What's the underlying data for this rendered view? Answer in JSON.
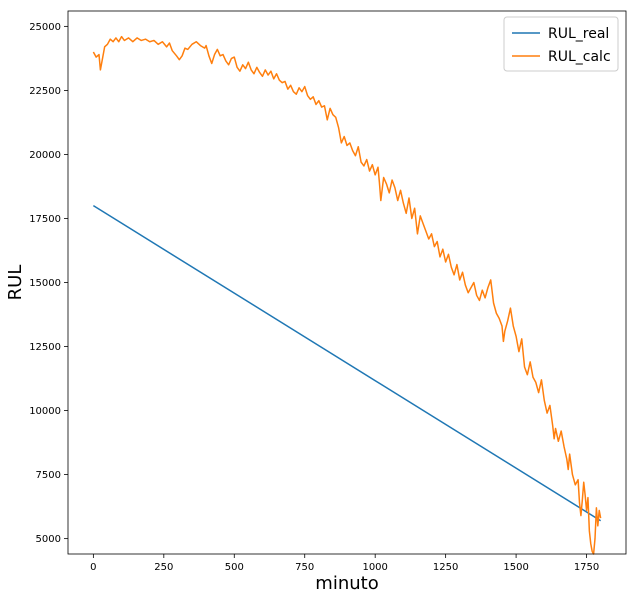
{
  "chart_data": {
    "type": "line",
    "title": "",
    "xlabel": "minuto",
    "ylabel": "RUL",
    "xlim": [
      -90,
      1890
    ],
    "ylim": [
      4400,
      25600
    ],
    "xticks": [
      0,
      250,
      500,
      750,
      1000,
      1250,
      1500,
      1750
    ],
    "yticks": [
      5000,
      7500,
      10000,
      12500,
      15000,
      17500,
      20000,
      22500,
      25000
    ],
    "legend_position": "top-right",
    "grid": false,
    "series": [
      {
        "name": "RUL_real",
        "color": "#1f77b4",
        "points": [
          [
            0,
            18000
          ],
          [
            1800,
            5700
          ]
        ]
      },
      {
        "name": "RUL_calc",
        "color": "#ff7f0e",
        "points": [
          [
            0,
            24000
          ],
          [
            10,
            23800
          ],
          [
            20,
            23900
          ],
          [
            25,
            23300
          ],
          [
            30,
            23600
          ],
          [
            40,
            24200
          ],
          [
            50,
            24300
          ],
          [
            60,
            24500
          ],
          [
            70,
            24400
          ],
          [
            80,
            24550
          ],
          [
            90,
            24400
          ],
          [
            100,
            24600
          ],
          [
            110,
            24450
          ],
          [
            125,
            24550
          ],
          [
            140,
            24400
          ],
          [
            155,
            24550
          ],
          [
            170,
            24450
          ],
          [
            185,
            24500
          ],
          [
            200,
            24400
          ],
          [
            215,
            24450
          ],
          [
            230,
            24300
          ],
          [
            245,
            24400
          ],
          [
            260,
            24200
          ],
          [
            270,
            24350
          ],
          [
            280,
            24050
          ],
          [
            295,
            23850
          ],
          [
            305,
            23700
          ],
          [
            315,
            23850
          ],
          [
            325,
            24150
          ],
          [
            335,
            24100
          ],
          [
            350,
            24300
          ],
          [
            365,
            24400
          ],
          [
            380,
            24250
          ],
          [
            395,
            24150
          ],
          [
            400,
            24250
          ],
          [
            410,
            23850
          ],
          [
            420,
            23550
          ],
          [
            430,
            23900
          ],
          [
            440,
            24100
          ],
          [
            450,
            23850
          ],
          [
            460,
            23900
          ],
          [
            470,
            23650
          ],
          [
            480,
            23500
          ],
          [
            490,
            23750
          ],
          [
            500,
            23800
          ],
          [
            510,
            23400
          ],
          [
            520,
            23250
          ],
          [
            530,
            23500
          ],
          [
            540,
            23350
          ],
          [
            550,
            23600
          ],
          [
            560,
            23300
          ],
          [
            570,
            23150
          ],
          [
            580,
            23400
          ],
          [
            590,
            23200
          ],
          [
            600,
            23050
          ],
          [
            610,
            23300
          ],
          [
            620,
            23100
          ],
          [
            630,
            23250
          ],
          [
            640,
            22950
          ],
          [
            650,
            23150
          ],
          [
            660,
            22900
          ],
          [
            670,
            22800
          ],
          [
            680,
            22850
          ],
          [
            690,
            22550
          ],
          [
            700,
            22700
          ],
          [
            710,
            22450
          ],
          [
            720,
            22350
          ],
          [
            730,
            22600
          ],
          [
            740,
            22450
          ],
          [
            750,
            22650
          ],
          [
            760,
            22300
          ],
          [
            770,
            22150
          ],
          [
            780,
            22250
          ],
          [
            790,
            21950
          ],
          [
            800,
            22100
          ],
          [
            810,
            21850
          ],
          [
            820,
            21900
          ],
          [
            830,
            21350
          ],
          [
            840,
            21800
          ],
          [
            850,
            21550
          ],
          [
            860,
            21450
          ],
          [
            870,
            21050
          ],
          [
            880,
            20450
          ],
          [
            890,
            20700
          ],
          [
            900,
            20350
          ],
          [
            910,
            20450
          ],
          [
            920,
            20150
          ],
          [
            930,
            19950
          ],
          [
            940,
            20300
          ],
          [
            950,
            19700
          ],
          [
            960,
            19550
          ],
          [
            970,
            19800
          ],
          [
            980,
            19350
          ],
          [
            990,
            19600
          ],
          [
            1000,
            19200
          ],
          [
            1010,
            19500
          ],
          [
            1015,
            18900
          ],
          [
            1020,
            18200
          ],
          [
            1030,
            19100
          ],
          [
            1040,
            18850
          ],
          [
            1050,
            18500
          ],
          [
            1060,
            19000
          ],
          [
            1070,
            18700
          ],
          [
            1080,
            18200
          ],
          [
            1090,
            18600
          ],
          [
            1100,
            18100
          ],
          [
            1110,
            17700
          ],
          [
            1120,
            18300
          ],
          [
            1130,
            17500
          ],
          [
            1140,
            17900
          ],
          [
            1150,
            16900
          ],
          [
            1160,
            17600
          ],
          [
            1170,
            17300
          ],
          [
            1180,
            17000
          ],
          [
            1190,
            16700
          ],
          [
            1200,
            16900
          ],
          [
            1210,
            16400
          ],
          [
            1220,
            16600
          ],
          [
            1230,
            16000
          ],
          [
            1240,
            16300
          ],
          [
            1250,
            15800
          ],
          [
            1260,
            16100
          ],
          [
            1270,
            15600
          ],
          [
            1280,
            15300
          ],
          [
            1290,
            15700
          ],
          [
            1300,
            15100
          ],
          [
            1310,
            15400
          ],
          [
            1320,
            14900
          ],
          [
            1330,
            14600
          ],
          [
            1340,
            14800
          ],
          [
            1350,
            15000
          ],
          [
            1360,
            14500
          ],
          [
            1370,
            14300
          ],
          [
            1380,
            14700
          ],
          [
            1390,
            14400
          ],
          [
            1400,
            14800
          ],
          [
            1410,
            15100
          ],
          [
            1420,
            14200
          ],
          [
            1430,
            13800
          ],
          [
            1440,
            13600
          ],
          [
            1450,
            13300
          ],
          [
            1455,
            12700
          ],
          [
            1460,
            13100
          ],
          [
            1470,
            13500
          ],
          [
            1480,
            14000
          ],
          [
            1490,
            13300
          ],
          [
            1500,
            12900
          ],
          [
            1505,
            12600
          ],
          [
            1510,
            12300
          ],
          [
            1520,
            12800
          ],
          [
            1530,
            11700
          ],
          [
            1540,
            11400
          ],
          [
            1550,
            11900
          ],
          [
            1560,
            11300
          ],
          [
            1570,
            11100
          ],
          [
            1580,
            10700
          ],
          [
            1590,
            11200
          ],
          [
            1600,
            10400
          ],
          [
            1610,
            9900
          ],
          [
            1620,
            10200
          ],
          [
            1630,
            9400
          ],
          [
            1635,
            8900
          ],
          [
            1640,
            9300
          ],
          [
            1650,
            8800
          ],
          [
            1660,
            9200
          ],
          [
            1670,
            8600
          ],
          [
            1680,
            8100
          ],
          [
            1685,
            7700
          ],
          [
            1690,
            8300
          ],
          [
            1700,
            7500
          ],
          [
            1710,
            7100
          ],
          [
            1720,
            7300
          ],
          [
            1725,
            6400
          ],
          [
            1730,
            5900
          ],
          [
            1735,
            6500
          ],
          [
            1740,
            7200
          ],
          [
            1745,
            6700
          ],
          [
            1750,
            6100
          ],
          [
            1755,
            6600
          ],
          [
            1760,
            5300
          ],
          [
            1765,
            4800
          ],
          [
            1770,
            4500
          ],
          [
            1775,
            4400
          ],
          [
            1780,
            5000
          ],
          [
            1785,
            6200
          ],
          [
            1790,
            5500
          ],
          [
            1795,
            6100
          ],
          [
            1800,
            5800
          ]
        ]
      }
    ]
  }
}
